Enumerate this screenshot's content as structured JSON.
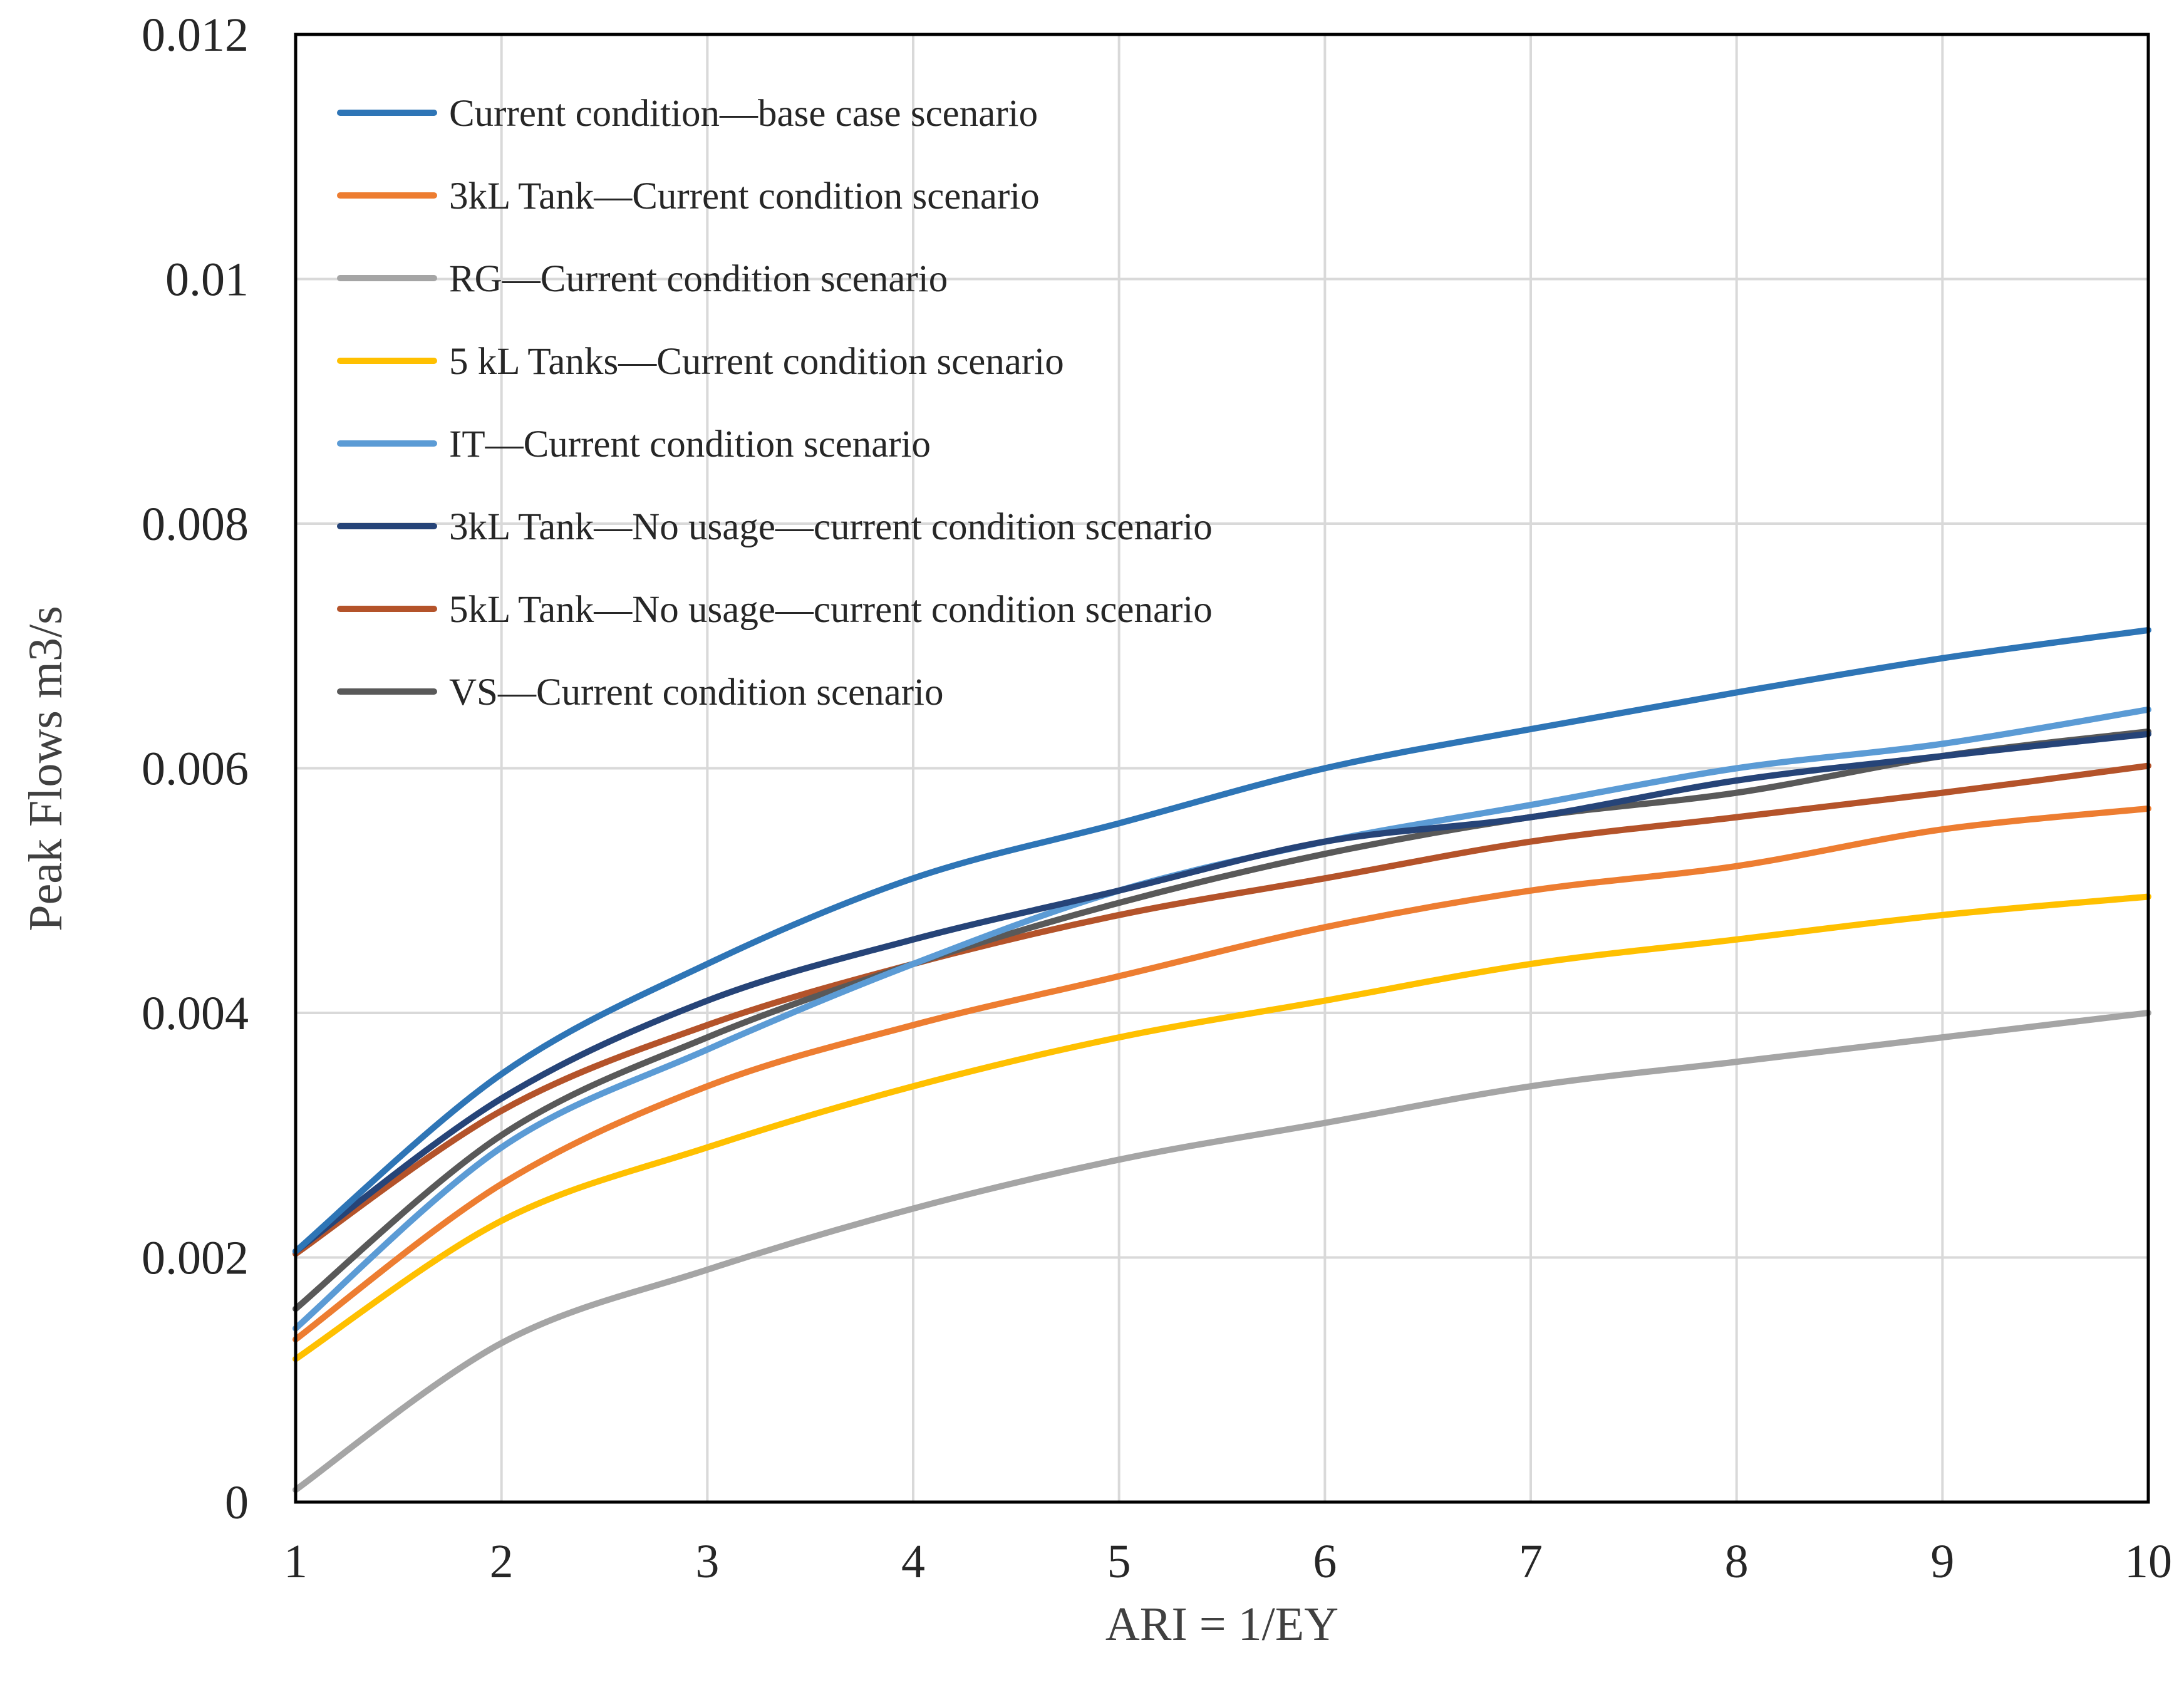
{
  "chart_data": {
    "type": "line",
    "title": "",
    "xlabel": "ARI = 1/EY",
    "ylabel": "Peak Flows m3/s",
    "xlim": [
      1,
      10
    ],
    "ylim": [
      0,
      0.012
    ],
    "x_ticks": [
      "1",
      "2",
      "3",
      "4",
      "5",
      "6",
      "7",
      "8",
      "9",
      "10"
    ],
    "y_ticks": [
      "0",
      "0.002",
      "0.004",
      "0.006",
      "0.008",
      "0.01",
      "0.012"
    ],
    "grid": true,
    "legend_position": "top-left",
    "x": [
      1,
      2,
      3,
      4,
      5,
      6,
      7,
      8,
      9,
      10
    ],
    "series": [
      {
        "name": "Current condition—base case scenario",
        "color": "#2e75b6",
        "values": [
          0.00205,
          0.0035,
          0.0044,
          0.0051,
          0.00555,
          0.006,
          0.00632,
          0.00662,
          0.0069,
          0.00713
        ]
      },
      {
        "name": "3kL Tank—Current condition scenario",
        "color": "#ed7d31",
        "values": [
          0.00133,
          0.0026,
          0.0034,
          0.0039,
          0.0043,
          0.0047,
          0.005,
          0.0052,
          0.0055,
          0.00567
        ]
      },
      {
        "name": "RG—Current condition scenario",
        "color": "#a5a5a5",
        "values": [
          0.0001,
          0.0013,
          0.0019,
          0.0024,
          0.0028,
          0.0031,
          0.0034,
          0.0036,
          0.0038,
          0.004
        ]
      },
      {
        "name": "5 kL Tanks—Current condition scenario",
        "color": "#ffc000",
        "values": [
          0.00117,
          0.0023,
          0.0029,
          0.0034,
          0.0038,
          0.0041,
          0.0044,
          0.0046,
          0.0048,
          0.00495
        ]
      },
      {
        "name": "IT—Current condition scenario",
        "color": "#5b9bd5",
        "values": [
          0.00142,
          0.0029,
          0.0037,
          0.0044,
          0.005,
          0.0054,
          0.0057,
          0.006,
          0.0062,
          0.00648
        ]
      },
      {
        "name": "3kL Tank—No usage—current condition scenario",
        "color": "#264478",
        "values": [
          0.00205,
          0.0033,
          0.0041,
          0.0046,
          0.005,
          0.0054,
          0.0056,
          0.0059,
          0.0061,
          0.00628
        ]
      },
      {
        "name": "5kL Tank—No usage—current condition scenario",
        "color": "#b4532a",
        "values": [
          0.00203,
          0.0032,
          0.0039,
          0.0044,
          0.0048,
          0.0051,
          0.0054,
          0.0056,
          0.0058,
          0.00602
        ]
      },
      {
        "name": "VS—Current condition scenario",
        "color": "#595959",
        "values": [
          0.00158,
          0.003,
          0.0038,
          0.0044,
          0.0049,
          0.0053,
          0.0056,
          0.0058,
          0.0061,
          0.0063
        ]
      }
    ]
  }
}
